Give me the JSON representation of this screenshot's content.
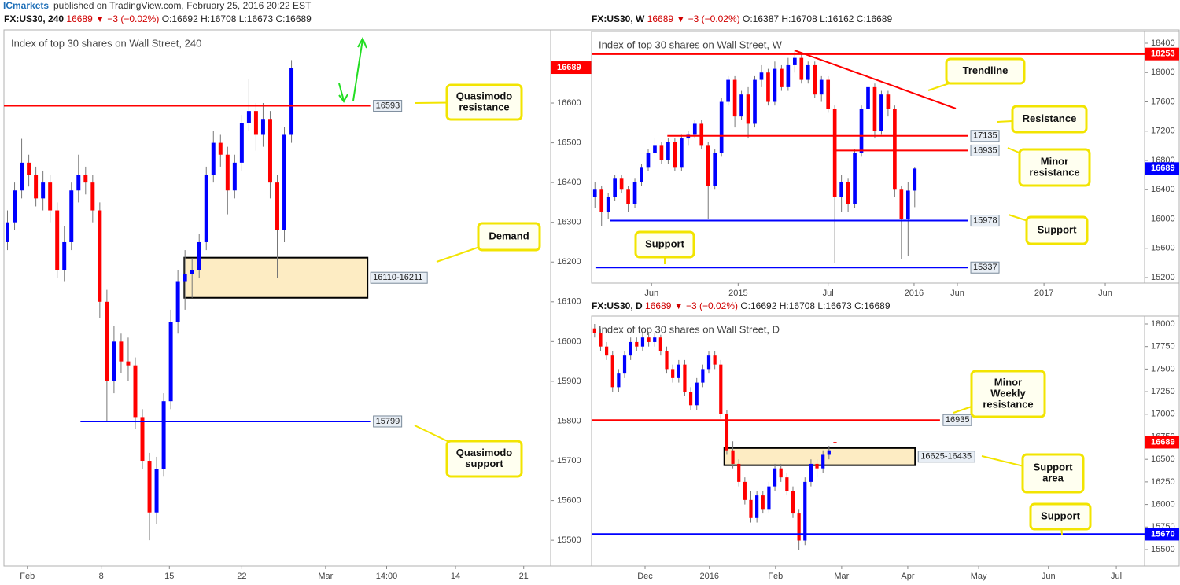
{
  "header": {
    "brand": "ICmarkets",
    "text": "published on TradingView.com, February 25, 2016 20:22 EST"
  },
  "chart_data": [
    {
      "type": "candlestick",
      "symbol": "FX:US30, 240",
      "quote": "16689 ▼ −3 (−0.02%)",
      "ohlc_text": "O:16692 H:16708 L:16673 C:16689",
      "title": "Index of top 30 shares on Wall Street, 240",
      "up_color": "#0000ff",
      "down_color": "#ff0000",
      "xlim": [
        0,
        77
      ],
      "xticks": [
        {
          "value": 3.3,
          "label": "Feb"
        },
        {
          "value": 13.7,
          "label": "8"
        },
        {
          "value": 23.3,
          "label": "15"
        },
        {
          "value": 33.5,
          "label": "22"
        },
        {
          "value": 45.3,
          "label": "Mar"
        },
        {
          "value": 53.9,
          "label": "14:00"
        },
        {
          "value": 63.6,
          "label": "14"
        },
        {
          "value": 73.2,
          "label": "21"
        }
      ],
      "ylim": [
        15435,
        16784
      ],
      "yticks": [
        15500,
        15600,
        15700,
        15800,
        15900,
        16000,
        16100,
        16200,
        16300,
        16400,
        16500,
        16600
      ],
      "candles": [
        [
          16250,
          16330,
          16230,
          16300
        ],
        [
          16300,
          16400,
          16280,
          16380
        ],
        [
          16380,
          16510,
          16360,
          16450
        ],
        [
          16450,
          16470,
          16390,
          16420
        ],
        [
          16420,
          16440,
          16340,
          16360
        ],
        [
          16360,
          16430,
          16330,
          16400
        ],
        [
          16400,
          16420,
          16300,
          16330
        ],
        [
          16330,
          16350,
          16160,
          16180
        ],
        [
          16180,
          16290,
          16150,
          16250
        ],
        [
          16250,
          16400,
          16230,
          16380
        ],
        [
          16380,
          16470,
          16350,
          16420
        ],
        [
          16420,
          16440,
          16370,
          16400
        ],
        [
          16400,
          16420,
          16300,
          16330
        ],
        [
          16330,
          16350,
          16060,
          16100
        ],
        [
          16100,
          16130,
          15800,
          15900
        ],
        [
          15900,
          16040,
          15870,
          16000
        ],
        [
          16000,
          16020,
          15920,
          15950
        ],
        [
          15950,
          16010,
          15900,
          15940
        ],
        [
          15940,
          15960,
          15780,
          15810
        ],
        [
          15810,
          15830,
          15680,
          15700
        ],
        [
          15700,
          15720,
          15500,
          15570
        ],
        [
          15570,
          15710,
          15540,
          15680
        ],
        [
          15680,
          15870,
          15660,
          15850
        ],
        [
          15850,
          16080,
          15830,
          16050
        ],
        [
          16050,
          16180,
          16020,
          16150
        ],
        [
          16150,
          16230,
          16080,
          16170
        ],
        [
          16170,
          16210,
          16110,
          16180
        ],
        [
          16180,
          16270,
          16160,
          16250
        ],
        [
          16250,
          16440,
          16230,
          16420
        ],
        [
          16420,
          16530,
          16400,
          16500
        ],
        [
          16500,
          16520,
          16440,
          16470
        ],
        [
          16470,
          16490,
          16320,
          16380
        ],
        [
          16380,
          16470,
          16360,
          16450
        ],
        [
          16450,
          16570,
          16430,
          16550
        ],
        [
          16550,
          16660,
          16530,
          16580
        ],
        [
          16580,
          16600,
          16480,
          16520
        ],
        [
          16520,
          16600,
          16490,
          16560
        ],
        [
          16560,
          16580,
          16360,
          16400
        ],
        [
          16400,
          16420,
          16160,
          16280
        ],
        [
          16280,
          16540,
          16250,
          16520
        ],
        [
          16520,
          16708,
          16500,
          16689
        ]
      ],
      "last_price": 16689,
      "last_color": "#ff0000",
      "levels": [
        {
          "value": 16593,
          "color": "#ff0000",
          "tag": "line"
        },
        {
          "value": 15799,
          "color": "#0000ff",
          "tag": "line"
        }
      ],
      "zones": [
        {
          "low": 16110,
          "high": 16211,
          "label": "16110-16211"
        }
      ],
      "callouts": [
        [
          "Quasimodo",
          "resistance"
        ],
        [
          "Demand"
        ],
        [
          "Quasimodo",
          "support"
        ]
      ]
    },
    {
      "type": "candlestick",
      "symbol": "FX:US30, W",
      "quote": "16689 ▼ −3 (−0.02%)",
      "ohlc_text": "O:16387 H:16708 L:16162 C:16689",
      "title": "Index of top 30 shares on Wall Street, W",
      "up_color": "#0000ff",
      "down_color": "#ff0000",
      "xlim": [
        0,
        83
      ],
      "xticks": [
        {
          "value": 9.0,
          "label": "Jun"
        },
        {
          "value": 22.0,
          "label": "2015"
        },
        {
          "value": 35.5,
          "label": "Jul"
        },
        {
          "value": 48.4,
          "label": "2016"
        },
        {
          "value": 54.9,
          "label": "Jun"
        },
        {
          "value": 67.9,
          "label": "2017"
        },
        {
          "value": 77.1,
          "label": "Jun"
        }
      ],
      "ylim": [
        15125,
        18561
      ],
      "yticks": [
        15200,
        15600,
        16000,
        16400,
        16800,
        17200,
        17600,
        18000,
        18400
      ],
      "candles": [
        [
          16300,
          16500,
          16150,
          16400
        ],
        [
          16400,
          16450,
          15900,
          16100
        ],
        [
          16100,
          16350,
          16000,
          16300
        ],
        [
          16300,
          16600,
          16250,
          16550
        ],
        [
          16550,
          16600,
          16350,
          16400
        ],
        [
          16400,
          16450,
          16100,
          16200
        ],
        [
          16200,
          16550,
          16150,
          16500
        ],
        [
          16500,
          16750,
          16450,
          16700
        ],
        [
          16700,
          16950,
          16650,
          16900
        ],
        [
          16900,
          17100,
          16850,
          17000
        ],
        [
          17000,
          17050,
          16750,
          16800
        ],
        [
          16800,
          17100,
          16750,
          17050
        ],
        [
          17050,
          17100,
          16650,
          16700
        ],
        [
          16700,
          17150,
          16650,
          17100
        ],
        [
          17100,
          17200,
          17000,
          17150
        ],
        [
          17150,
          17350,
          17100,
          17300
        ],
        [
          17300,
          17350,
          16950,
          17000
        ],
        [
          17000,
          17050,
          16000,
          16450
        ],
        [
          16450,
          16950,
          16400,
          16900
        ],
        [
          16900,
          17650,
          16850,
          17600
        ],
        [
          17600,
          17950,
          17550,
          17900
        ],
        [
          17900,
          17950,
          17250,
          17400
        ],
        [
          17400,
          17750,
          17350,
          17700
        ],
        [
          17700,
          17800,
          17100,
          17300
        ],
        [
          17300,
          17950,
          17250,
          17900
        ],
        [
          17900,
          18100,
          17800,
          18000
        ],
        [
          18000,
          18050,
          17550,
          17600
        ],
        [
          17600,
          18150,
          17550,
          18050
        ],
        [
          18050,
          18100,
          17750,
          17800
        ],
        [
          17800,
          18200,
          17750,
          18100
        ],
        [
          18100,
          18300,
          18000,
          18200
        ],
        [
          18200,
          18250,
          17850,
          17900
        ],
        [
          17900,
          18150,
          17850,
          18100
        ],
        [
          18100,
          18150,
          17650,
          17700
        ],
        [
          17700,
          17950,
          17600,
          17900
        ],
        [
          17900,
          17950,
          17450,
          17500
        ],
        [
          17500,
          17550,
          15400,
          16300
        ],
        [
          16300,
          16600,
          16100,
          16500
        ],
        [
          16500,
          16550,
          16100,
          16200
        ],
        [
          16200,
          16950,
          16150,
          16900
        ],
        [
          16900,
          17550,
          16850,
          17500
        ],
        [
          17500,
          17900,
          17450,
          17800
        ],
        [
          17800,
          17850,
          17100,
          17200
        ],
        [
          17200,
          17750,
          17150,
          17700
        ],
        [
          17700,
          17750,
          17400,
          17500
        ],
        [
          17500,
          17550,
          16300,
          16400
        ],
        [
          16400,
          16450,
          15450,
          16000
        ],
        [
          16000,
          16500,
          15500,
          16387
        ],
        [
          16387,
          16708,
          16162,
          16689
        ]
      ],
      "last_price": 16689,
      "last_color": "#0000ff",
      "levels": [
        {
          "value": 18253,
          "color": "#ff0000",
          "tag": "axis"
        },
        {
          "value": 17135,
          "color": "#ff0000",
          "tag": "line"
        },
        {
          "value": 16935,
          "color": "#ff0000",
          "tag": "line"
        },
        {
          "value": 15978,
          "color": "#0000ff",
          "tag": "line"
        },
        {
          "value": 15337,
          "color": "#0000ff",
          "tag": "line"
        }
      ],
      "zones": [],
      "callouts": [
        [
          "Trendline"
        ],
        [
          "Resistance"
        ],
        [
          "Minor",
          "resistance"
        ],
        [
          "Support"
        ],
        [
          "Support"
        ]
      ]
    },
    {
      "type": "candlestick",
      "symbol": "FX:US30, D",
      "quote": "16689 ▼ −3 (−0.02%)",
      "ohlc_text": "O:16692 H:16708 L:16673 C:16689",
      "title": "Index of top 30 shares on Wall Street, D",
      "up_color": "#0000ff",
      "down_color": "#ff0000",
      "xlim": [
        0,
        92
      ],
      "xticks": [
        {
          "value": 8.9,
          "label": "Dec"
        },
        {
          "value": 19.6,
          "label": "2016"
        },
        {
          "value": 30.6,
          "label": "Feb"
        },
        {
          "value": 41.6,
          "label": "Mar"
        },
        {
          "value": 52.6,
          "label": "Apr"
        },
        {
          "value": 64.4,
          "label": "May"
        },
        {
          "value": 76.0,
          "label": "Jun"
        },
        {
          "value": 87.3,
          "label": "Jul"
        }
      ],
      "ylim": [
        15317,
        18087
      ],
      "yticks": [
        15500,
        15750,
        16000,
        16250,
        16500,
        16750,
        17000,
        17250,
        17500,
        17750,
        18000
      ],
      "candles": [
        [
          17950,
          18000,
          17850,
          17900
        ],
        [
          17900,
          17950,
          17700,
          17750
        ],
        [
          17750,
          17800,
          17600,
          17650
        ],
        [
          17650,
          17700,
          17250,
          17300
        ],
        [
          17300,
          17500,
          17250,
          17450
        ],
        [
          17450,
          17700,
          17400,
          17650
        ],
        [
          17650,
          17850,
          17600,
          17800
        ],
        [
          17800,
          17850,
          17700,
          17750
        ],
        [
          17750,
          17900,
          17700,
          17850
        ],
        [
          17850,
          17900,
          17750,
          17800
        ],
        [
          17800,
          17900,
          17750,
          17850
        ],
        [
          17850,
          17880,
          17650,
          17700
        ],
        [
          17700,
          17750,
          17450,
          17500
        ],
        [
          17500,
          17550,
          17350,
          17400
        ],
        [
          17400,
          17600,
          17350,
          17550
        ],
        [
          17550,
          17600,
          17200,
          17250
        ],
        [
          17250,
          17300,
          17050,
          17100
        ],
        [
          17100,
          17400,
          17050,
          17350
        ],
        [
          17350,
          17550,
          17300,
          17500
        ],
        [
          17500,
          17700,
          17450,
          17650
        ],
        [
          17650,
          17700,
          17500,
          17550
        ],
        [
          17550,
          17600,
          16950,
          17000
        ],
        [
          17000,
          17050,
          16550,
          16600
        ],
        [
          16600,
          16700,
          16400,
          16450
        ],
        [
          16450,
          16500,
          16200,
          16250
        ],
        [
          16250,
          16300,
          16000,
          16050
        ],
        [
          16050,
          16150,
          15800,
          15850
        ],
        [
          15850,
          16150,
          15800,
          16100
        ],
        [
          16100,
          16150,
          15900,
          15950
        ],
        [
          15950,
          16250,
          15900,
          16200
        ],
        [
          16200,
          16450,
          16150,
          16400
        ],
        [
          16400,
          16450,
          16250,
          16300
        ],
        [
          16300,
          16350,
          16100,
          16150
        ],
        [
          16150,
          16200,
          15850,
          15900
        ],
        [
          15900,
          15950,
          15500,
          15600
        ],
        [
          15600,
          16300,
          15550,
          16250
        ],
        [
          16250,
          16500,
          16200,
          16450
        ],
        [
          16450,
          16500,
          16300,
          16400
        ],
        [
          16400,
          16600,
          16350,
          16550
        ],
        [
          16550,
          16650,
          16500,
          16600
        ],
        [
          16692,
          16708,
          16673,
          16689
        ]
      ],
      "last_price": 16689,
      "last_color": "#ff0000",
      "levels": [
        {
          "value": 16935,
          "color": "#ff0000",
          "tag": "line"
        },
        {
          "value": 15670,
          "color": "#0000ff",
          "tag": "axis"
        }
      ],
      "zones": [
        {
          "low": 16435,
          "high": 16625,
          "label": "16625-16435"
        }
      ],
      "callouts": [
        [
          "Minor",
          "Weekly",
          "resistance"
        ],
        [
          "Support",
          "area"
        ],
        [
          "Support"
        ]
      ]
    }
  ]
}
